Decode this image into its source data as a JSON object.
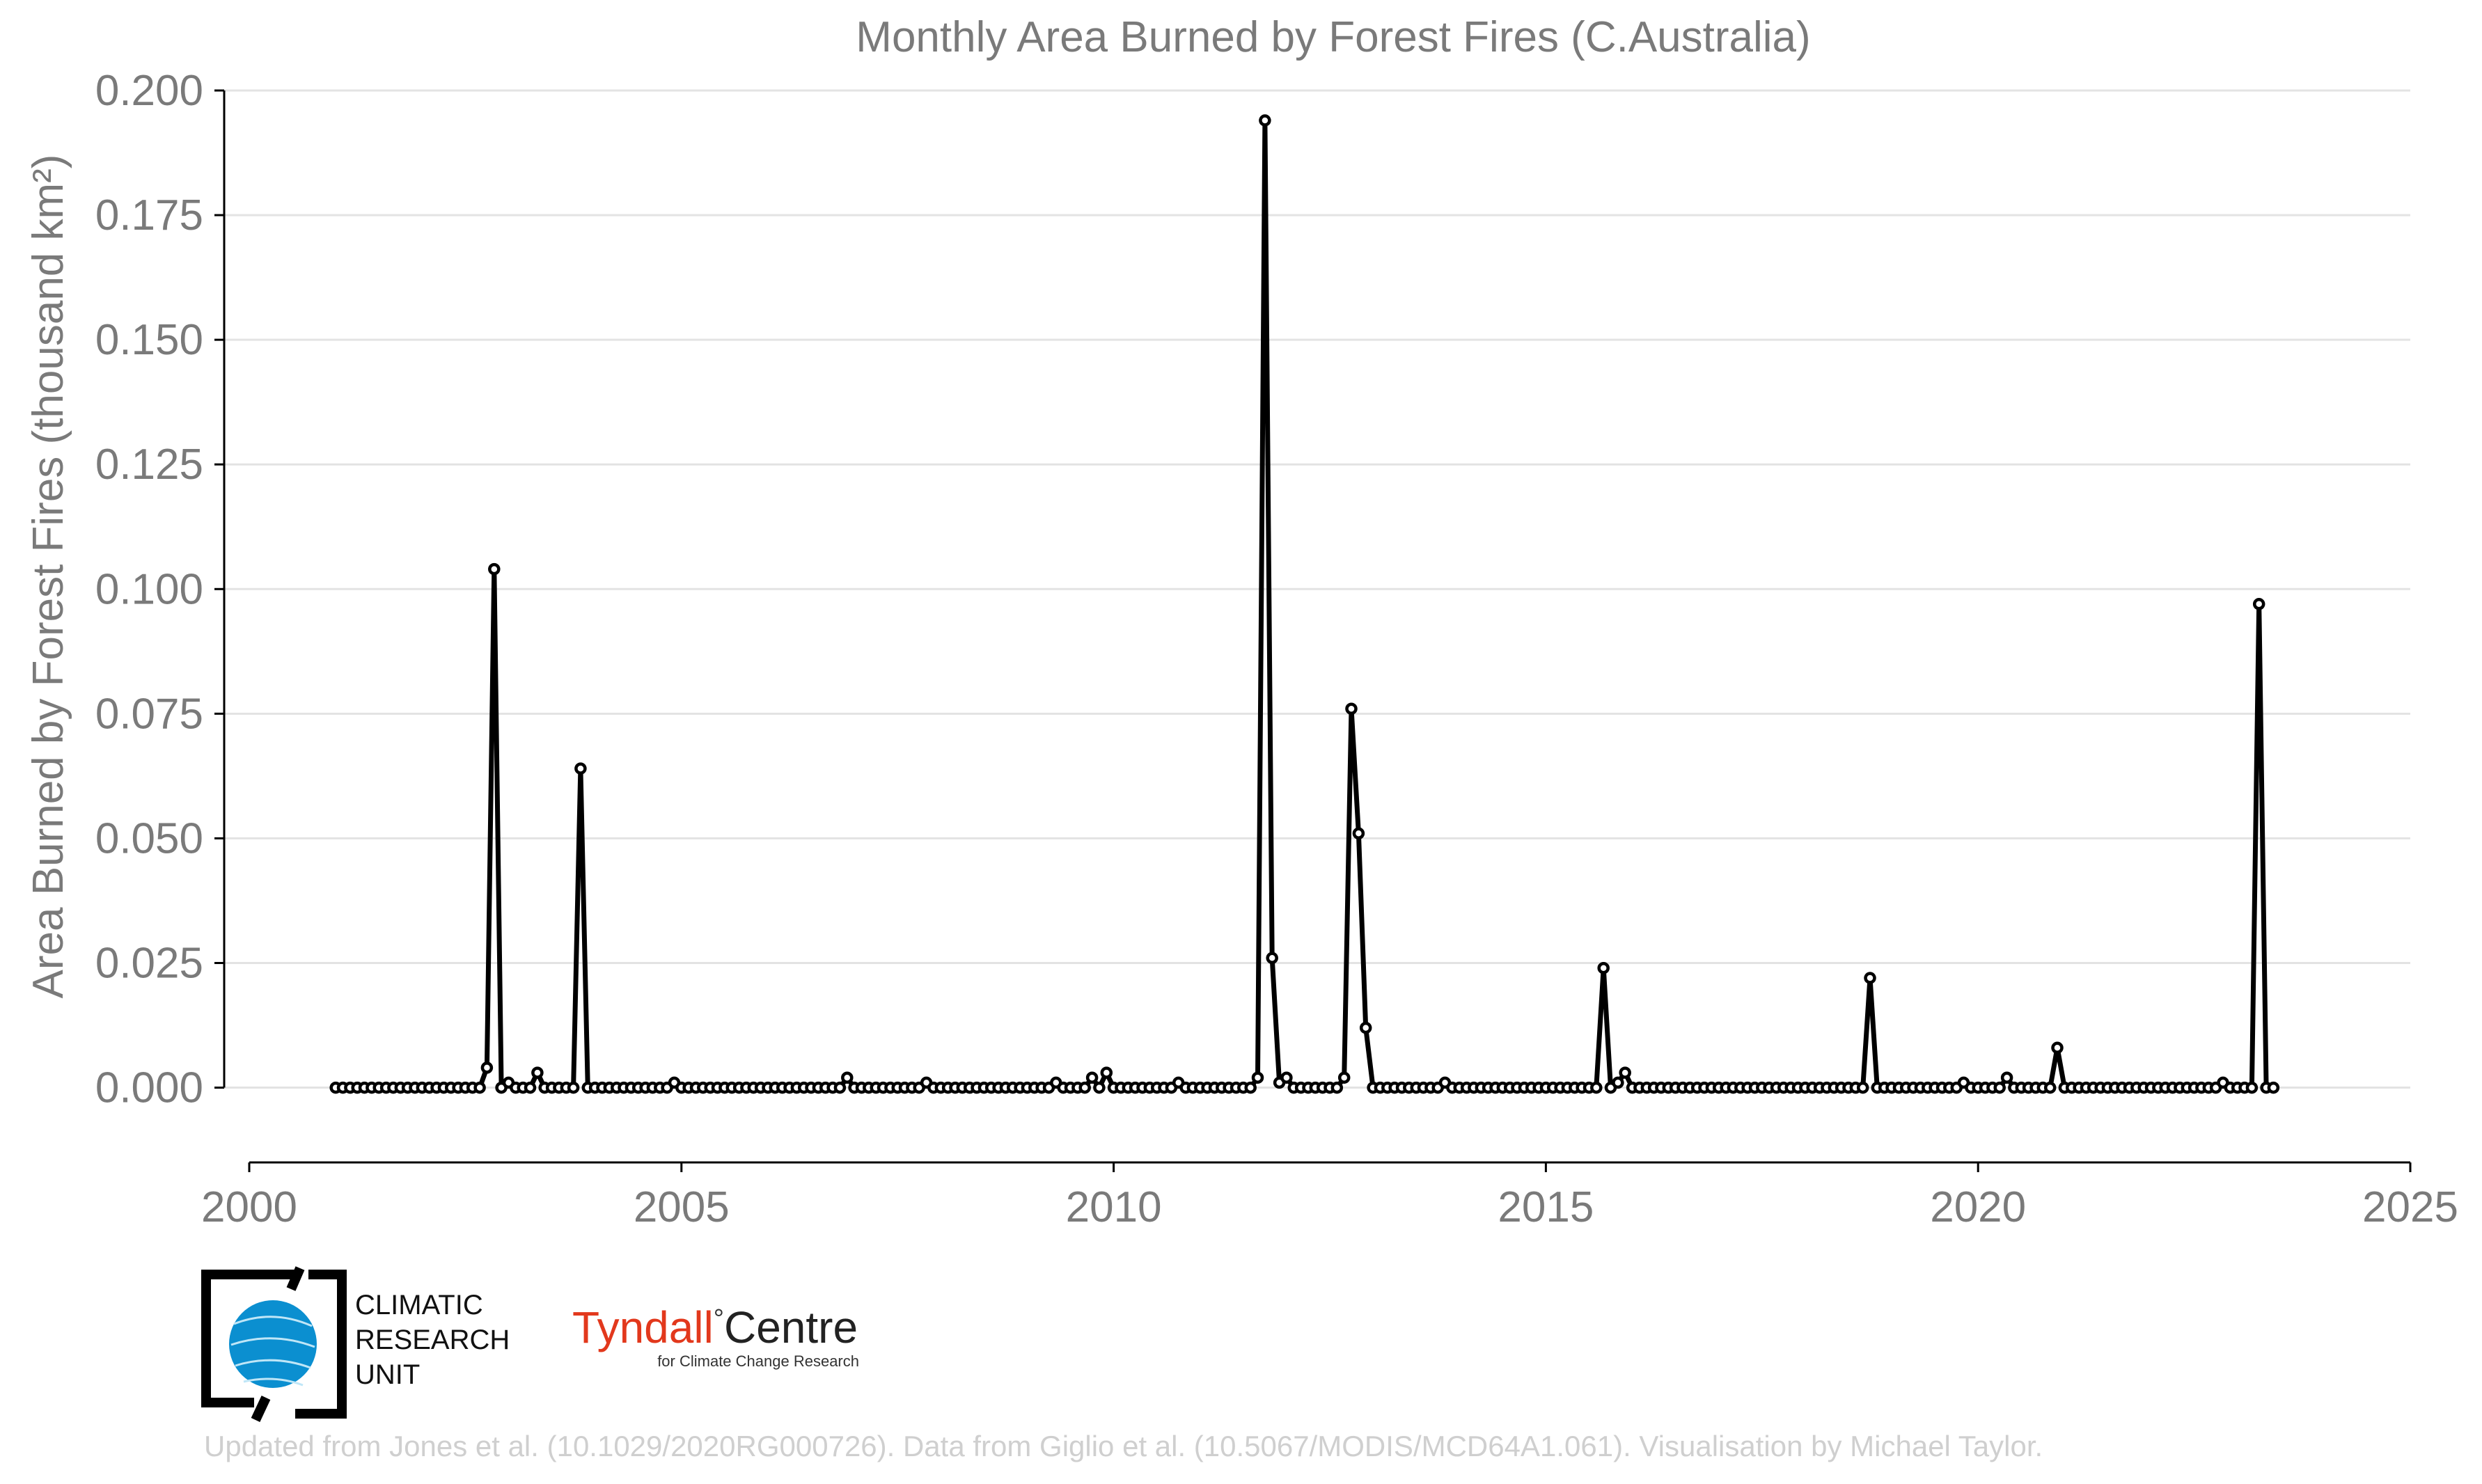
{
  "chart_data": {
    "type": "line",
    "title": "Monthly Area Burned by Forest Fires (C.Australia)",
    "xlabel": "",
    "ylabel": "Area Burned by Forest Fires (thousand km²)",
    "xlim": [
      2000,
      2025
    ],
    "ylim": [
      -0.015,
      0.2
    ],
    "x_ticks": [
      2000,
      2005,
      2010,
      2015,
      2020,
      2025
    ],
    "y_ticks": [
      0.0,
      0.025,
      0.05,
      0.075,
      0.1,
      0.125,
      0.15,
      0.175,
      0.2
    ],
    "y_tick_labels": [
      "0.000",
      "0.025",
      "0.050",
      "0.075",
      "0.100",
      "0.125",
      "0.150",
      "0.175",
      "0.200"
    ],
    "x_tick_labels": [
      "2000",
      "2005",
      "2010",
      "2015",
      "2020",
      "2025"
    ],
    "grid": true,
    "series": [
      {
        "start": "2001-01",
        "end": "2023-06",
        "frequency": "monthly",
        "baseline": 0.0,
        "nonzero_months": {
          "2002-10": 0.004,
          "2002-11": 0.104,
          "2003-01": 0.001,
          "2003-05": 0.003,
          "2003-11": 0.064,
          "2004-12": 0.001,
          "2006-12": 0.002,
          "2007-11": 0.001,
          "2009-05": 0.001,
          "2009-10": 0.002,
          "2009-12": 0.003,
          "2010-10": 0.001,
          "2011-09": 0.002,
          "2011-10": 0.194,
          "2011-11": 0.026,
          "2011-12": 0.001,
          "2012-01": 0.002,
          "2012-09": 0.002,
          "2012-10": 0.076,
          "2012-11": 0.051,
          "2012-12": 0.012,
          "2013-11": 0.001,
          "2015-09": 0.024,
          "2015-11": 0.001,
          "2015-12": 0.003,
          "2018-10": 0.022,
          "2019-11": 0.001,
          "2020-05": 0.002,
          "2020-12": 0.008,
          "2022-11": 0.001,
          "2023-04": 0.097
        }
      }
    ]
  },
  "logos": {
    "cru_line1": "CLIMATIC",
    "cru_line2": "RESEARCH",
    "cru_line3": "UNIT",
    "tyndall_name": "Tyndall",
    "tyndall_degree": "°",
    "tyndall_centre": "Centre",
    "tyndall_sub": "for Climate Change Research",
    "tyndall_color": "#e2381c",
    "cru_globe_color": "#0b8fd0"
  },
  "footer": "Updated from Jones et al. (10.1029/2020RG000726). Data from Giglio et al. (10.5067/MODIS/MCD64A1.061). Visualisation by Michael Taylor."
}
